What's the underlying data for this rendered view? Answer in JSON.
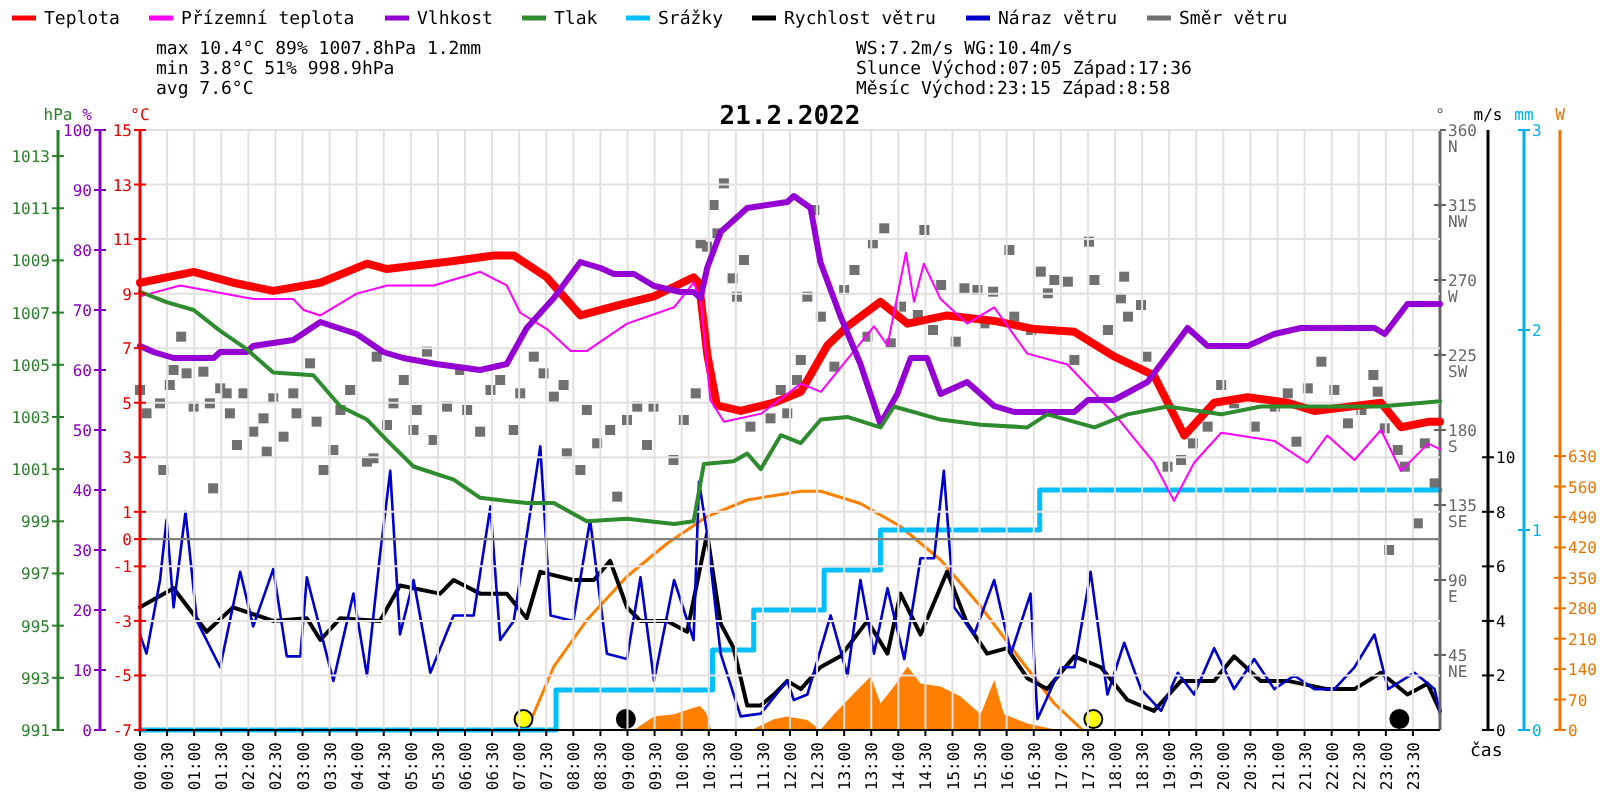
{
  "chart_data": [
    {
      "type": "line",
      "title": "21.2.2022",
      "xlabel": "čas",
      "ylabel": "°C",
      "y2label": "%",
      "y3label": "hPa",
      "annotations": [
        "max 10.4°C 89% 1007.8hPa 1.2mm",
        "min 3.8°C 51% 998.9hPa",
        "avg 7.6°C",
        "WS:7.2m/s WG:10.4m/s",
        "Slunce Východ:07:05 Západ:17:36",
        "Měsíc Východ:23:15 Západ:8:58"
      ],
      "xlim": [
        0,
        24
      ],
      "xticks": [
        {
          "value": 0,
          "label": "00:00"
        },
        {
          "value": 0.5,
          "label": "00:30"
        },
        {
          "value": 1,
          "label": "01:00"
        },
        {
          "value": 1.5,
          "label": "01:30"
        },
        {
          "value": 2,
          "label": "02:00"
        },
        {
          "value": 2.5,
          "label": "02:30"
        },
        {
          "value": 3,
          "label": "03:00"
        },
        {
          "value": 3.5,
          "label": "03:30"
        },
        {
          "value": 4,
          "label": "04:00"
        },
        {
          "value": 4.5,
          "label": "04:30"
        },
        {
          "value": 5,
          "label": "05:00"
        },
        {
          "value": 5.5,
          "label": "05:30"
        },
        {
          "value": 6,
          "label": "06:00"
        },
        {
          "value": 6.5,
          "label": "06:30"
        },
        {
          "value": 7,
          "label": "07:00"
        },
        {
          "value": 7.5,
          "label": "07:30"
        },
        {
          "value": 8,
          "label": "08:00"
        },
        {
          "value": 8.5,
          "label": "08:30"
        },
        {
          "value": 9,
          "label": "09:00"
        },
        {
          "value": 9.5,
          "label": "09:30"
        },
        {
          "value": 10,
          "label": "10:00"
        },
        {
          "value": 10.5,
          "label": "10:30"
        },
        {
          "value": 11,
          "label": "11:00"
        },
        {
          "value": 11.5,
          "label": "11:30"
        },
        {
          "value": 12,
          "label": "12:00"
        },
        {
          "value": 12.5,
          "label": "12:30"
        },
        {
          "value": 13,
          "label": "13:00"
        },
        {
          "value": 13.5,
          "label": "13:30"
        },
        {
          "value": 14,
          "label": "14:00"
        },
        {
          "value": 14.5,
          "label": "14:30"
        },
        {
          "value": 15,
          "label": "15:00"
        },
        {
          "value": 15.5,
          "label": "15:30"
        },
        {
          "value": 16,
          "label": "16:00"
        },
        {
          "value": 16.5,
          "label": "16:30"
        },
        {
          "value": 17,
          "label": "17:00"
        },
        {
          "value": 17.5,
          "label": "17:30"
        },
        {
          "value": 18,
          "label": "18:00"
        },
        {
          "value": 18.5,
          "label": "18:30"
        },
        {
          "value": 19,
          "label": "19:00"
        },
        {
          "value": 19.5,
          "label": "19:30"
        },
        {
          "value": 20,
          "label": "20:00"
        },
        {
          "value": 20.5,
          "label": "20:30"
        },
        {
          "value": 21,
          "label": "21:00"
        },
        {
          "value": 21.5,
          "label": "21:30"
        },
        {
          "value": 22,
          "label": "22:00"
        },
        {
          "value": 22.5,
          "label": "22:30"
        },
        {
          "value": 23,
          "label": "23:00"
        },
        {
          "value": 23.5,
          "label": "23:30"
        }
      ],
      "ylim": [
        -7,
        15
      ],
      "yticks": [
        -7,
        -5,
        -3,
        -1,
        0,
        1,
        3,
        5,
        7,
        9,
        11,
        13,
        15
      ],
      "y2lim": [
        0,
        100
      ],
      "y2ticks": [
        0,
        10,
        20,
        30,
        40,
        50,
        60,
        70,
        80,
        90,
        100
      ],
      "y3lim": [
        991,
        1014
      ],
      "y3ticks": [
        991,
        993,
        995,
        997,
        999,
        1001,
        1003,
        1005,
        1007,
        1009,
        1011,
        1013
      ],
      "grid": true,
      "legend": "top",
      "ref_lines": [
        {
          "axis": "y",
          "value": 0,
          "color": "#808080"
        }
      ],
      "series": [
        {
          "name": "Teplota",
          "color": "#ff0000",
          "x": [
            0,
            0.99,
            1.72,
            2.46,
            3.33,
            4.19,
            4.56,
            5.79,
            6.53,
            6.9,
            7.51,
            8.13,
            8.87,
            9.49,
            10.22,
            10.32,
            10.47,
            10.65,
            11.09,
            11.7,
            12.2,
            12.69,
            13.06,
            13.67,
            14.17,
            14.9,
            15.77,
            16.51,
            17.25,
            17.98,
            18.72,
            19.28,
            19.83,
            20.45,
            21.19,
            21.68,
            22.91,
            23.28,
            23.78,
            24
          ],
          "values": [
            9.4,
            9.8,
            9.4,
            9.1,
            9.4,
            10.1,
            9.9,
            10.2,
            10.4,
            10.4,
            9.6,
            8.2,
            8.6,
            8.9,
            9.6,
            9.4,
            6.8,
            4.9,
            4.7,
            5.0,
            5.4,
            7.1,
            7.8,
            8.7,
            7.9,
            8.2,
            8.0,
            7.7,
            7.6,
            6.7,
            6.0,
            3.8,
            5.0,
            5.2,
            5.0,
            4.7,
            5.0,
            4.1,
            4.3,
            4.3
          ]
        },
        {
          "name": "Přízemní teplota",
          "color": "#ff00ff",
          "x": [
            0,
            0.74,
            2.09,
            2.83,
            3.02,
            3.33,
            4.0,
            4.56,
            5.42,
            6.28,
            6.77,
            7.02,
            7.51,
            7.95,
            8.25,
            8.99,
            9.86,
            10.22,
            10.35,
            10.53,
            10.78,
            11.47,
            12.2,
            12.57,
            13.06,
            13.55,
            13.8,
            14.14,
            14.29,
            14.47,
            14.78,
            15.27,
            15.77,
            16.38,
            17.12,
            17.98,
            18.72,
            19.09,
            19.46,
            19.96,
            20.94,
            21.55,
            21.92,
            22.42,
            22.91,
            23.28,
            23.78,
            24
          ],
          "values": [
            8.9,
            9.3,
            8.8,
            8.8,
            8.4,
            8.2,
            9.0,
            9.3,
            9.3,
            9.8,
            9.3,
            8.3,
            7.7,
            6.9,
            6.9,
            7.9,
            8.5,
            9.4,
            8.8,
            5.1,
            4.3,
            4.6,
            5.7,
            5.4,
            6.6,
            7.8,
            7.1,
            10.5,
            8.7,
            10.1,
            8.8,
            7.9,
            8.5,
            6.8,
            6.4,
            4.6,
            2.8,
            1.4,
            2.8,
            3.9,
            3.6,
            2.8,
            3.8,
            2.9,
            4.0,
            2.5,
            3.5,
            3.3
          ]
        },
        {
          "name": "Vlhkost",
          "axis": "y2",
          "color": "#9400d3",
          "x": [
            0,
            0.25,
            0.62,
            1.36,
            1.48,
            1.97,
            2.09,
            2.83,
            3.33,
            4.0,
            4.49,
            4.86,
            5.47,
            6.28,
            6.77,
            7.14,
            7.64,
            8.13,
            8.5,
            8.75,
            9.12,
            9.49,
            9.98,
            10.22,
            10.35,
            10.47,
            10.72,
            11.21,
            11.95,
            12.07,
            12.38,
            12.56,
            12.93,
            13.3,
            13.67,
            13.98,
            14.23,
            14.53,
            14.78,
            15.27,
            15.77,
            16.14,
            16.75,
            17.25,
            17.5,
            17.98,
            18.6,
            19.34,
            19.71,
            20.45,
            20.94,
            21.43,
            22.79,
            22.98,
            23.4,
            24
          ],
          "values": [
            64,
            63,
            62,
            62,
            63,
            63,
            64,
            65,
            68,
            66,
            63,
            62,
            61,
            60,
            61,
            67,
            72,
            78,
            77,
            76,
            76,
            74,
            73,
            73,
            72,
            77,
            83,
            87,
            88,
            89,
            87,
            78,
            69,
            61,
            51,
            56,
            62,
            62,
            56,
            58,
            54,
            53,
            53,
            53,
            55,
            55,
            58,
            67,
            64,
            64,
            66,
            67,
            67,
            66,
            71,
            71
          ]
        },
        {
          "name": "Tlak",
          "axis": "y3",
          "color": "#2e8b2e",
          "x": [
            0,
            0.49,
            0.99,
            1.48,
            1.97,
            2.46,
            3.2,
            3.7,
            4.19,
            4.56,
            5.05,
            5.79,
            6.28,
            7.14,
            7.64,
            8.25,
            8.99,
            9.86,
            10.22,
            10.41,
            10.96,
            11.21,
            11.46,
            11.83,
            12.2,
            12.57,
            13.06,
            13.67,
            13.92,
            14.78,
            15.52,
            16.38,
            16.75,
            17.62,
            18.23,
            18.97,
            19.96,
            20.69,
            21.68,
            22.91,
            24
          ],
          "values": [
            1007.8,
            1007.4,
            1007.1,
            1006.3,
            1005.6,
            1004.7,
            1004.6,
            1003.4,
            1002.9,
            1002.1,
            1001.1,
            1000.6,
            999.9,
            999.7,
            999.7,
            999.0,
            999.1,
            998.9,
            999.0,
            1001.2,
            1001.3,
            1001.6,
            1001.0,
            1002.3,
            1002.0,
            1002.9,
            1003.0,
            1002.6,
            1003.4,
            1002.9,
            1002.7,
            1002.6,
            1003.1,
            1002.6,
            1003.1,
            1003.4,
            1003.1,
            1003.4,
            1003.4,
            1003.4,
            1003.6
          ]
        }
      ]
    },
    {
      "type": "line",
      "tick_labels": "y",
      "legend": "top",
      "ylabel": "°",
      "y2label": "m/s",
      "y3label": "mm",
      "xlim": [
        0,
        24
      ],
      "ylim": [
        0,
        360
      ],
      "yticks": [
        {
          "value": 45,
          "label": "45\nNE"
        },
        {
          "value": 90,
          "label": "90\nE"
        },
        {
          "value": 135,
          "label": "135\nSE"
        },
        {
          "value": 180,
          "label": "180\nS"
        },
        {
          "value": 225,
          "label": "225\nSW"
        },
        {
          "value": 270,
          "label": "270\nW"
        },
        {
          "value": 315,
          "label": "315\nNW"
        },
        {
          "value": 360,
          "label": "360\nN"
        }
      ],
      "y2lim": [
        0,
        22
      ],
      "y2ticks": [
        0,
        2,
        4,
        6,
        8,
        10
      ],
      "y3lim": [
        0,
        3
      ],
      "y3ticks": [
        0,
        1,
        2,
        3
      ],
      "series": [
        {
          "name": "Srážky",
          "type": "step",
          "axis": "y3",
          "color": "#00bfff",
          "x": [
            0,
            7.68,
            10.57,
            11.33,
            12.63,
            13.67,
            16.61,
            24
          ],
          "values": [
            0,
            0.2,
            0.4,
            0.6,
            0.8,
            1.0,
            1.2,
            1.2
          ]
        },
        {
          "name": "Rychlost větru",
          "axis": "y2",
          "color": "#000000",
          "x": [
            0,
            0.62,
            1.23,
            1.72,
            2.46,
            3.08,
            3.33,
            3.7,
            4.43,
            4.8,
            5.54,
            5.79,
            6.28,
            6.77,
            7.14,
            7.39,
            8.0,
            8.38,
            8.68,
            8.99,
            9.24,
            9.73,
            10.1,
            10.47,
            10.72,
            10.96,
            11.21,
            11.46,
            11.7,
            11.95,
            12.2,
            12.56,
            12.93,
            13.43,
            13.8,
            14.04,
            14.41,
            14.9,
            15.27,
            15.64,
            16.01,
            16.38,
            16.75,
            17.25,
            17.74,
            18.23,
            18.72,
            19.22,
            19.83,
            20.2,
            20.69,
            21.19,
            21.92,
            22.42,
            22.91,
            23.4,
            23.77,
            24
          ],
          "values": [
            4.5,
            5.2,
            3.6,
            4.5,
            4.0,
            4.1,
            3.3,
            4.1,
            4.0,
            5.3,
            5.0,
            5.5,
            5.0,
            5.0,
            4.1,
            5.8,
            5.5,
            5.5,
            6.2,
            4.5,
            4.0,
            4.0,
            3.6,
            7.2,
            3.9,
            3.0,
            0.9,
            0.9,
            1.3,
            1.8,
            1.5,
            2.3,
            2.7,
            4.0,
            2.8,
            5.0,
            3.5,
            5.8,
            3.9,
            2.8,
            3.0,
            1.9,
            1.5,
            2.7,
            2.3,
            1.1,
            0.7,
            1.8,
            1.8,
            2.7,
            1.8,
            1.8,
            1.5,
            1.5,
            2.1,
            1.3,
            1.7,
            0.7
          ]
        },
        {
          "name": "Náraz větru",
          "axis": "y2",
          "color": "#0000cc",
          "x": [
            0,
            0.12,
            0.37,
            0.49,
            0.62,
            0.84,
            1.05,
            1.48,
            1.85,
            2.09,
            2.46,
            2.71,
            2.96,
            3.08,
            3.57,
            3.94,
            4.19,
            4.43,
            4.62,
            4.8,
            5.05,
            5.36,
            5.79,
            6.16,
            6.47,
            6.65,
            6.9,
            7.39,
            7.58,
            8.0,
            8.31,
            8.62,
            8.99,
            9.24,
            9.49,
            9.86,
            10.22,
            10.32,
            10.47,
            10.72,
            11.09,
            11.46,
            11.95,
            12.07,
            12.32,
            12.75,
            13.06,
            13.3,
            13.55,
            13.8,
            14.11,
            14.41,
            14.66,
            14.84,
            15.03,
            15.4,
            15.77,
            16.08,
            16.44,
            16.57,
            17.0,
            17.25,
            17.55,
            17.86,
            18.17,
            18.48,
            18.85,
            19.16,
            19.46,
            19.83,
            20.2,
            20.57,
            20.94,
            21.31,
            21.68,
            22.05,
            22.42,
            22.79,
            23.04,
            23.53,
            23.9,
            24
          ],
          "values": [
            3.5,
            2.8,
            5.5,
            7.7,
            4.5,
            8.0,
            4.0,
            2.3,
            5.8,
            3.8,
            5.9,
            2.7,
            2.7,
            5.6,
            1.8,
            5.0,
            2.0,
            6.4,
            9.5,
            3.5,
            5.5,
            2.1,
            4.2,
            4.2,
            8.2,
            3.3,
            4.0,
            10.4,
            4.2,
            4.0,
            7.7,
            2.8,
            2.6,
            5.6,
            1.8,
            5.5,
            3.3,
            9.1,
            7.2,
            2.8,
            0.5,
            0.6,
            1.8,
            1.1,
            1.3,
            4.2,
            2.0,
            5.5,
            2.8,
            5.2,
            2.6,
            6.3,
            6.3,
            9.5,
            4.5,
            3.5,
            5.5,
            2.8,
            5.0,
            0.4,
            2.3,
            2.3,
            5.8,
            1.3,
            3.2,
            1.5,
            0.7,
            2.1,
            1.3,
            3.0,
            1.5,
            2.6,
            1.5,
            2.0,
            1.5,
            1.5,
            2.3,
            3.5,
            1.5,
            2.1,
            1.5,
            0.6
          ]
        },
        {
          "name": "Směr větru",
          "type": "scatter",
          "marker": "square",
          "color": "#707070",
          "x": [
            0,
            0.12,
            0.37,
            0.43,
            0.55,
            0.62,
            0.76,
            0.86,
            0.99,
            1.17,
            1.29,
            1.35,
            1.48,
            1.6,
            1.66,
            1.79,
            1.91,
            2.09,
            2.28,
            2.34,
            2.46,
            2.65,
            2.83,
            2.89,
            3.14,
            3.26,
            3.39,
            3.57,
            3.7,
            3.88,
            4.19,
            4.31,
            4.37,
            4.56,
            4.68,
            4.87,
            5.05,
            5.11,
            5.3,
            5.42,
            5.67,
            5.91,
            6.04,
            6.28,
            6.47,
            6.65,
            6.9,
            7.02,
            7.27,
            7.45,
            7.64,
            7.82,
            7.88,
            8.13,
            8.25,
            8.44,
            8.68,
            8.81,
            8.99,
            9.18,
            9.36,
            9.48,
            9.85,
            10.04,
            10.26,
            10.35,
            10.47,
            10.59,
            10.66,
            10.78,
            10.94,
            11.02,
            11.15,
            11.27,
            11.64,
            11.83,
            11.95,
            12.13,
            12.2,
            12.32,
            12.45,
            12.57,
            12.82,
            13.0,
            13.19,
            13.43,
            13.53,
            13.74,
            13.86,
            14.05,
            14.36,
            14.48,
            14.64,
            14.79,
            15.06,
            15.22,
            15.46,
            15.59,
            15.75,
            16.05,
            16.14,
            16.45,
            16.63,
            16.76,
            16.88,
            17.13,
            17.25,
            17.52,
            17.62,
            17.87,
            18.11,
            18.17,
            18.24,
            18.48,
            18.58,
            18.97,
            19.22,
            19.44,
            19.71,
            19.96,
            20.2,
            20.58,
            20.95,
            21.19,
            21.35,
            21.56,
            21.81,
            22.05,
            22.3,
            22.55,
            22.77,
            22.85,
            22.98,
            23.06,
            23.22,
            23.35,
            23.59,
            23.72,
            23.9
          ],
          "values": [
            204,
            190,
            196,
            156,
            207,
            216,
            236,
            214,
            194,
            215,
            196,
            145,
            205,
            202,
            190,
            171,
            202,
            179,
            187,
            167,
            199,
            176,
            202,
            190,
            220,
            185,
            156,
            168,
            192,
            204,
            161,
            163,
            224,
            183,
            196,
            210,
            180,
            192,
            227,
            174,
            194,
            216,
            192,
            179,
            204,
            210,
            180,
            202,
            224,
            214,
            200,
            207,
            166,
            156,
            192,
            172,
            180,
            140,
            186,
            194,
            171,
            194,
            162,
            186,
            202,
            292,
            290,
            315,
            298,
            328,
            271,
            260,
            282,
            182,
            187,
            204,
            190,
            210,
            222,
            260,
            312,
            248,
            218,
            264,
            276,
            236,
            292,
            301,
            232,
            254,
            249,
            300,
            240,
            267,
            233,
            265,
            264,
            244,
            263,
            288,
            248,
            240,
            275,
            262,
            270,
            269,
            222,
            293,
            270,
            240,
            259,
            272,
            248,
            255,
            224,
            158,
            162,
            172,
            182,
            207,
            196,
            182,
            194,
            202,
            173,
            205,
            221,
            204,
            184,
            192,
            213,
            203,
            181,
            108,
            168,
            158,
            124,
            172,
            148
          ]
        },
        {
          "type": "scatter",
          "axis": "y2",
          "marker": "circle",
          "color": "#ffff00",
          "x": [
            7.08,
            17.6
          ],
          "values": [
            0.4,
            0.4
          ]
        },
        {
          "type": "scatter",
          "axis": "y2",
          "marker": "circle",
          "color": "#000000",
          "x": [
            8.97,
            23.25
          ],
          "values": [
            0.4,
            0.4
          ]
        }
      ]
    },
    {
      "type": "line",
      "tick_labels": "y",
      "ylabel": "W",
      "xlim": [
        0,
        24
      ],
      "ylim": [
        0,
        1380
      ],
      "yticks": [
        0,
        70,
        140,
        210,
        280,
        350,
        420,
        490,
        560,
        630
      ],
      "series": [
        {
          "color": "#ff8000",
          "x": [
            7.14,
            7.64,
            8.25,
            8.99,
            9.73,
            10.47,
            11.21,
            12.2,
            12.57,
            13.3,
            14.04,
            14.78,
            15.52,
            16.26,
            16.88,
            17.4
          ],
          "values": [
            0,
            146,
            253,
            353,
            429,
            491,
            529,
            549,
            549,
            521,
            468,
            391,
            284,
            161,
            61,
            0
          ]
        },
        {
          "type": "area",
          "color": "#ff8000",
          "x": [
            9.12,
            9.49,
            9.86,
            10.22,
            10.34,
            10.45,
            10.55,
            11.29,
            11.7,
            11.95,
            12.32,
            12.56,
            12.81,
            13.18,
            13.49,
            13.67,
            13.92,
            14.17,
            14.41,
            14.78,
            15.15,
            15.52,
            15.77,
            15.95,
            16.38,
            16.94
          ],
          "values": [
            0,
            31,
            36,
            51,
            55,
            40,
            0,
            0,
            25,
            31,
            23,
            0,
            36,
            84,
            123,
            61,
            100,
            146,
            107,
            100,
            77,
            36,
            115,
            36,
            15,
            0
          ]
        }
      ]
    }
  ]
}
